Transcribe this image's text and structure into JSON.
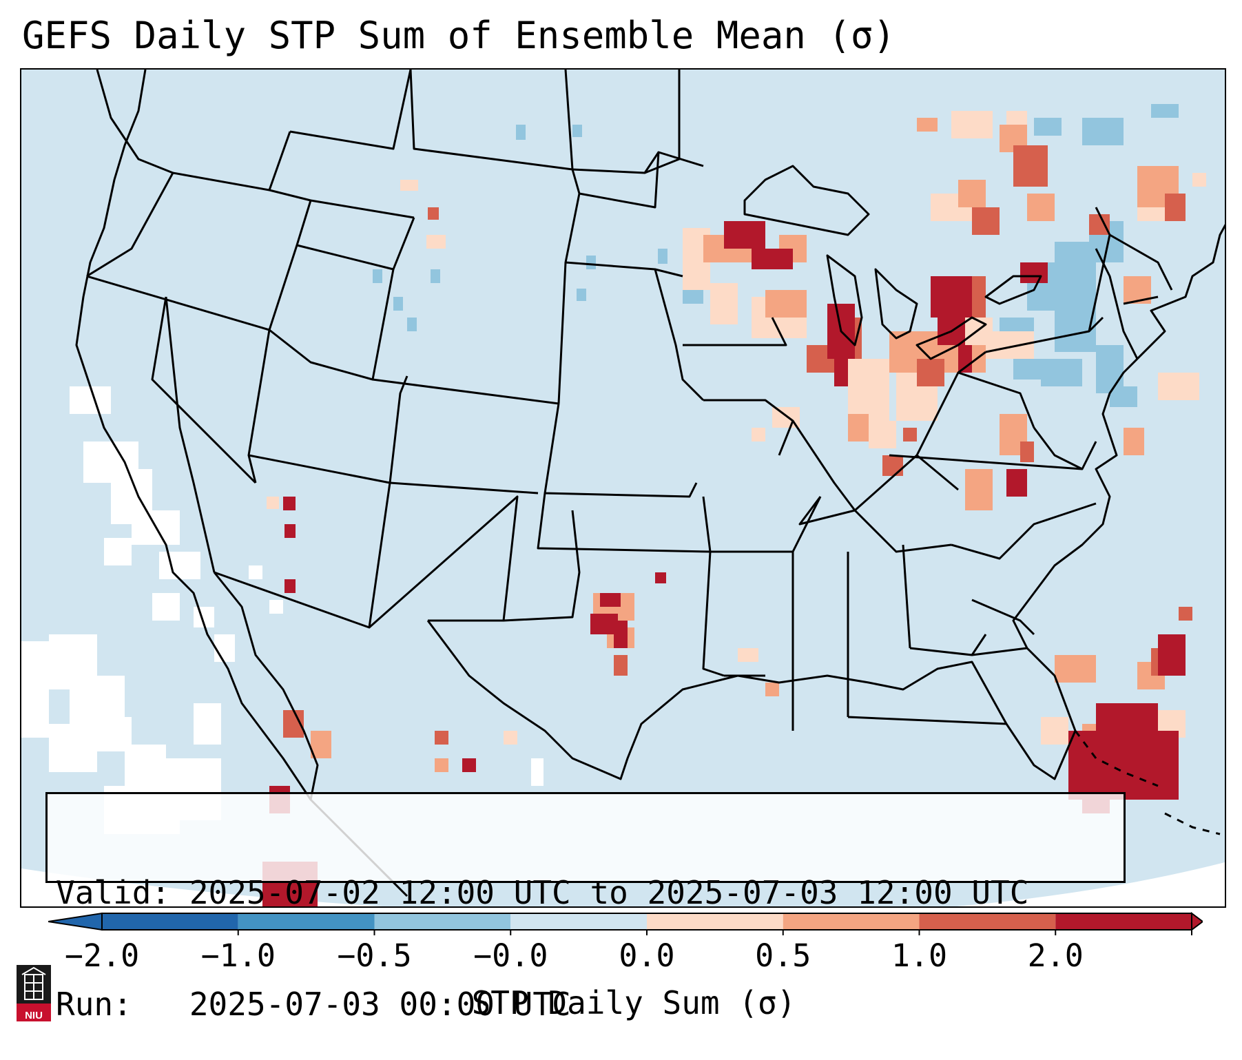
{
  "title": "GEFS Daily STP Sum of Ensemble Mean (σ)",
  "info": {
    "valid_line": "Valid: 2025-07-02 12:00 UTC to 2025-07-03 12:00 UTC",
    "run_line": "Run:   2025-07-03 00:00 UTC"
  },
  "colorbar": {
    "label": "STP Daily Sum (σ)",
    "ticks": [
      "−2.0",
      "−1.0",
      "−0.5",
      "−0.0",
      "0.0",
      "0.5",
      "1.0",
      "2.0"
    ],
    "colors": [
      "#2166ac",
      "#4393c3",
      "#92c5de",
      "#d1e5f0",
      "#fddbc7",
      "#f4a582",
      "#d6604d",
      "#b2182b"
    ],
    "extend": "both"
  },
  "map": {
    "region": "Contiguous United States",
    "background_color": "#d1e5f0",
    "out_of_domain_color": "#ffffff",
    "features": [
      "state borders",
      "country borders",
      "coastlines"
    ]
  },
  "logo": {
    "text": "NIU",
    "color": "#c8102e"
  }
}
